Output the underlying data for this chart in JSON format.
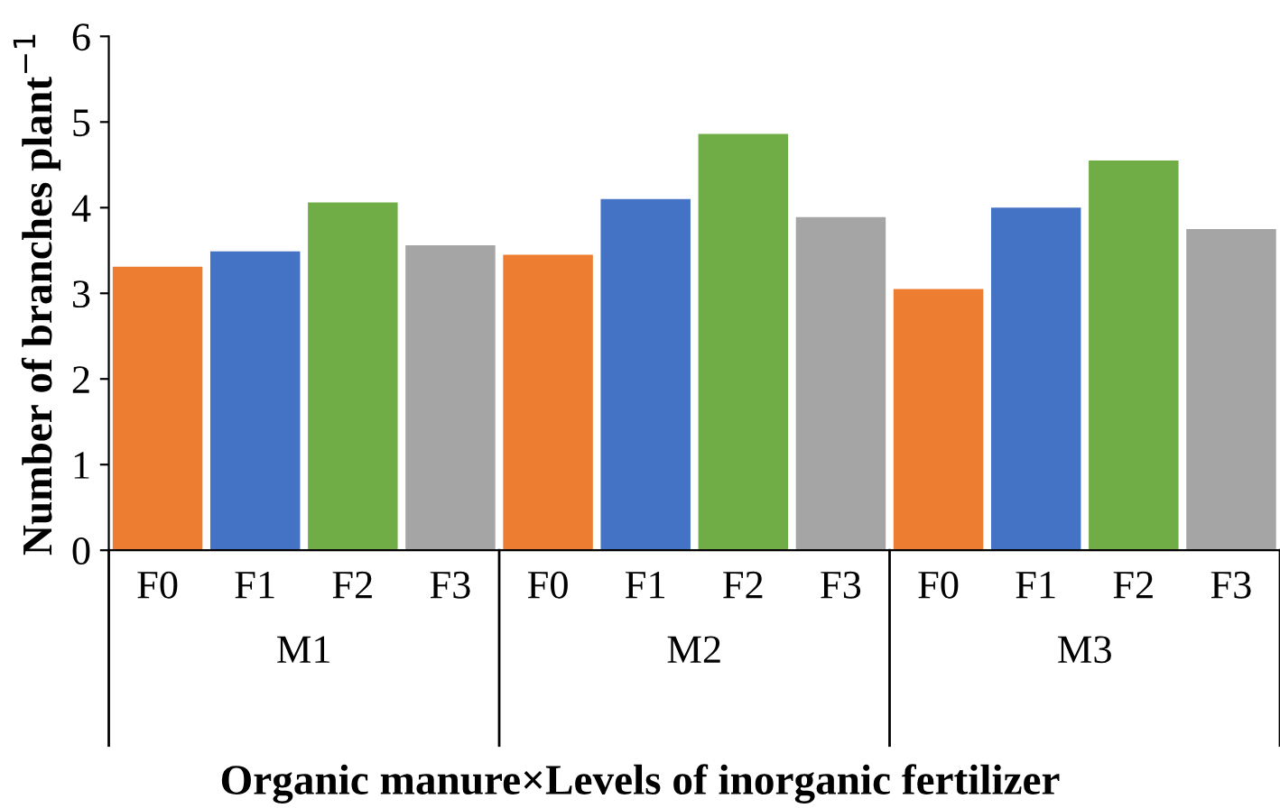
{
  "chart_data": {
    "type": "bar",
    "categories": [
      "F0",
      "F1",
      "F2",
      "F3",
      "F0",
      "F1",
      "F2",
      "F3",
      "F0",
      "F1",
      "F2",
      "F3"
    ],
    "values": [
      3.31,
      3.49,
      4.06,
      3.56,
      3.45,
      4.1,
      4.86,
      3.89,
      3.05,
      4.0,
      4.55,
      3.75
    ],
    "colors": [
      "#ed7d31",
      "#4472c4",
      "#70ad47",
      "#a5a5a5",
      "#ed7d31",
      "#4472c4",
      "#70ad47",
      "#a5a5a5",
      "#ed7d31",
      "#4472c4",
      "#70ad47",
      "#a5a5a5"
    ],
    "annotations": [
      "M1",
      "M2",
      "M3"
    ],
    "xlabel": "Organic manure×Levels of inorganic fertilizer",
    "ylabel": "Number of branches plant$^{−1}$",
    "ylim": [
      0,
      6
    ],
    "yticks": [
      0,
      1,
      2,
      3,
      4,
      5,
      6
    ],
    "grid": false
  }
}
